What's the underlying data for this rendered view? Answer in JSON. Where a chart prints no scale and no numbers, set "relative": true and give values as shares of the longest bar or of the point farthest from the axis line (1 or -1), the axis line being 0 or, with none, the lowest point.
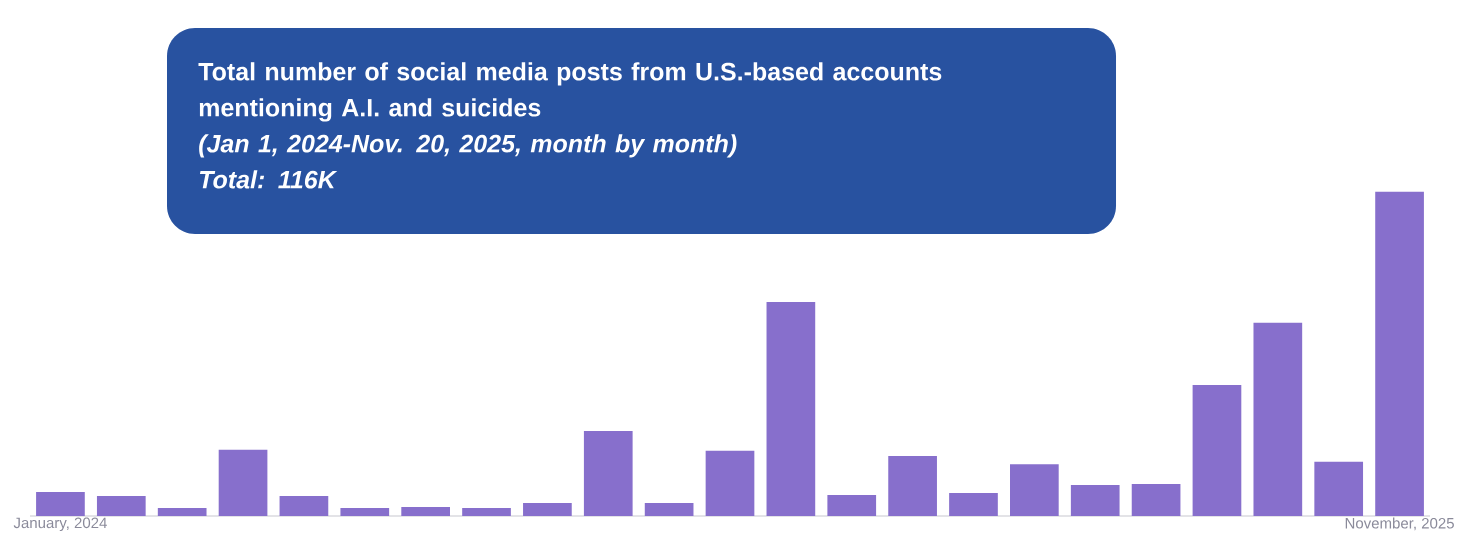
{
  "chart_data": {
    "type": "bar",
    "title": "Total number of social media posts from U.S.-based accounts mentioning A.I. and suicides",
    "subtitle": "(Jan 1, 2024-Nov. 20, 2025, month by month)",
    "annotations": [
      "Total: 116K"
    ],
    "categories": [
      "January, 2024",
      null,
      null,
      null,
      null,
      null,
      null,
      null,
      null,
      null,
      null,
      null,
      null,
      null,
      null,
      null,
      null,
      null,
      null,
      null,
      null,
      null,
      "November, 2025"
    ],
    "values": [
      0.074,
      0.062,
      0.025,
      0.204,
      0.062,
      0.025,
      0.028,
      0.025,
      0.04,
      0.262,
      0.04,
      0.201,
      0.66,
      0.065,
      0.185,
      0.071,
      0.16,
      0.096,
      0.099,
      0.404,
      0.596,
      0.167,
      1
    ],
    "color": "#876fcc",
    "relative": true
  }
}
